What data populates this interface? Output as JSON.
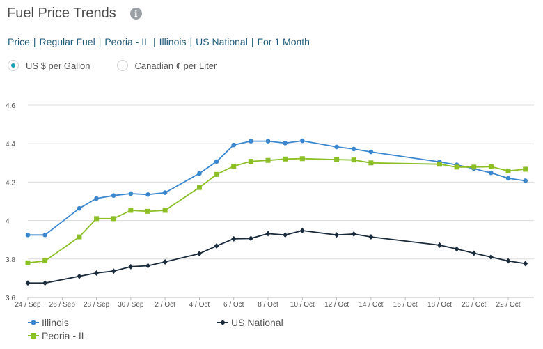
{
  "header": {
    "title": "Fuel Price Trends",
    "info_glyph": "i"
  },
  "breadcrumb": [
    "Price",
    "Regular Fuel",
    "Peoria - IL",
    "Illinois",
    "US National",
    "For 1 Month"
  ],
  "units": {
    "options": [
      {
        "label": "US $ per Gallon",
        "selected": true
      },
      {
        "label": "Canadian ¢ per Liter",
        "selected": false
      }
    ]
  },
  "colors": {
    "illinois": "#3a87d0",
    "peoria": "#8cbf26",
    "us_national": "#1a2b3c",
    "grid": "#dcdcdc",
    "axis_text": "#555555"
  },
  "chart_data": {
    "type": "line",
    "ylim": [
      3.6,
      4.6
    ],
    "yticks": [
      "3.6",
      "3.8",
      "4",
      "4.2",
      "4.4",
      "4.6"
    ],
    "yticks_values": [
      3.6,
      3.8,
      4.0,
      4.2,
      4.4,
      4.6
    ],
    "xlim": [
      0,
      29.5
    ],
    "xticks": [
      {
        "label": "24 / Sep",
        "x": 0
      },
      {
        "label": "26 / Sep",
        "x": 2
      },
      {
        "label": "28 / Sep",
        "x": 4
      },
      {
        "label": "30 / Sep",
        "x": 6
      },
      {
        "label": "2 / Oct",
        "x": 8
      },
      {
        "label": "4 / Oct",
        "x": 10
      },
      {
        "label": "6 / Oct",
        "x": 12
      },
      {
        "label": "8 / Oct",
        "x": 14
      },
      {
        "label": "10 / Oct",
        "x": 16
      },
      {
        "label": "12 / Oct",
        "x": 18
      },
      {
        "label": "14 / Oct",
        "x": 20
      },
      {
        "label": "16 / Oct",
        "x": 22
      },
      {
        "label": "18 / Oct",
        "x": 24
      },
      {
        "label": "20 / Oct",
        "x": 26
      },
      {
        "label": "22 / Oct",
        "x": 28
      }
    ],
    "grid": "horizontal",
    "legend_position": "bottom",
    "series": [
      {
        "name": "Illinois",
        "marker": "circle",
        "x": [
          0,
          1,
          3,
          4,
          5,
          6,
          7,
          8,
          10,
          11,
          12,
          13,
          14,
          15,
          16,
          18,
          19,
          20,
          24,
          25,
          26,
          27,
          28,
          29
        ],
        "values": [
          3.925,
          3.925,
          4.063,
          4.115,
          4.13,
          4.14,
          4.135,
          4.145,
          4.245,
          4.307,
          4.393,
          4.413,
          4.413,
          4.403,
          4.415,
          4.383,
          4.372,
          4.357,
          4.305,
          4.29,
          4.27,
          4.248,
          4.22,
          4.207
        ]
      },
      {
        "name": "Peoria - IL",
        "marker": "square",
        "x": [
          0,
          1,
          3,
          4,
          5,
          6,
          7,
          8,
          10,
          11,
          12,
          13,
          14,
          15,
          16,
          18,
          19,
          20,
          24,
          25,
          26,
          27,
          28,
          29
        ],
        "values": [
          3.78,
          3.79,
          3.915,
          4.01,
          4.01,
          4.053,
          4.048,
          4.053,
          4.172,
          4.24,
          4.283,
          4.308,
          4.313,
          4.32,
          4.322,
          4.317,
          4.315,
          4.3,
          4.293,
          4.278,
          4.278,
          4.28,
          4.258,
          4.267
        ]
      },
      {
        "name": "US National",
        "marker": "diamond",
        "x": [
          0,
          1,
          3,
          4,
          5,
          6,
          7,
          8,
          10,
          11,
          12,
          13,
          14,
          15,
          16,
          18,
          19,
          20,
          24,
          25,
          26,
          27,
          28,
          29
        ],
        "values": [
          3.675,
          3.675,
          3.71,
          3.727,
          3.737,
          3.76,
          3.765,
          3.785,
          3.828,
          3.868,
          3.905,
          3.907,
          3.932,
          3.925,
          3.948,
          3.925,
          3.93,
          3.915,
          3.872,
          3.852,
          3.83,
          3.81,
          3.79,
          3.776
        ]
      }
    ]
  }
}
